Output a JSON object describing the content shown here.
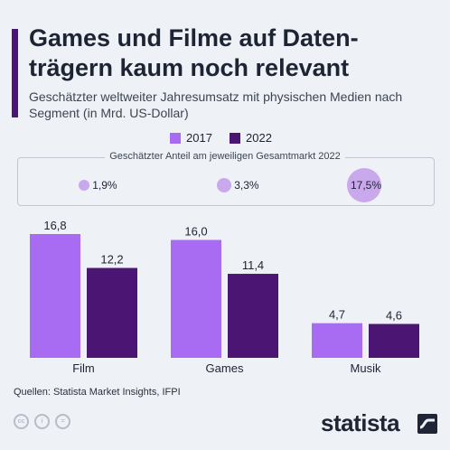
{
  "title": "Games und Filme auf Daten-trägern kaum noch relevant",
  "subtitle": "Geschätzter weltweiter Jahresumsatz mit physischen Medien nach Segment (in Mrd. US-Dollar)",
  "legend": [
    {
      "label": "2017",
      "color": "#a86cf2"
    },
    {
      "label": "2022",
      "color": "#4a1573"
    }
  ],
  "share_caption": "Geschätzter Anteil am jeweiligen Gesamtmarkt 2022",
  "shares": [
    {
      "segment": "Film",
      "value": 1.9,
      "label": "1,9%"
    },
    {
      "segment": "Games",
      "value": 3.3,
      "label": "3,3%"
    },
    {
      "segment": "Musik",
      "value": 17.5,
      "label": "17,5%"
    }
  ],
  "chart_data": {
    "type": "bar",
    "categories": [
      "Film",
      "Games",
      "Musik"
    ],
    "series": [
      {
        "name": "2017",
        "values": [
          16.8,
          16.0,
          4.7
        ],
        "labels": [
          "16,8",
          "16,0",
          "4,7"
        ],
        "color": "#a86cf2"
      },
      {
        "name": "2022",
        "values": [
          12.2,
          11.4,
          4.6
        ],
        "labels": [
          "12,2",
          "11,4",
          "4,6"
        ],
        "color": "#4a1573"
      }
    ],
    "ylim": [
      0,
      16.8
    ],
    "grid": false,
    "legend_position": "top"
  },
  "source": "Quellen: Statista Market Insights, IFPI",
  "license_icons": [
    "cc-icon",
    "attribution-icon",
    "no-derivatives-icon"
  ],
  "license_labels": [
    "cc",
    "i",
    "="
  ],
  "brand": "statista",
  "colors": {
    "accent": "#4c1679",
    "share_circle": "#c9a8ec",
    "background": "#eef1f6"
  }
}
